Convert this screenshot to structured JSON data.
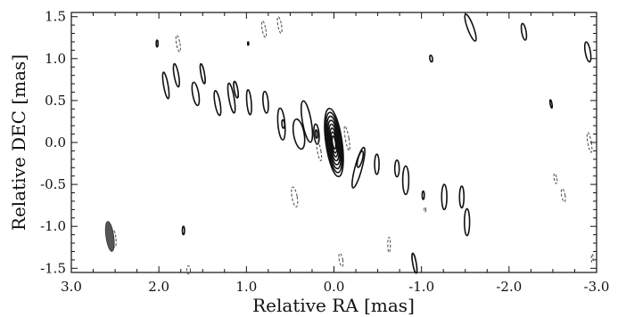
{
  "chart_data": {
    "type": "contour",
    "xlabel": "Relative RA [mas]",
    "ylabel": "Relative DEC [mas]",
    "xlim": [
      3.0,
      -3.0
    ],
    "ylim": [
      -1.55,
      1.55
    ],
    "x_ticks": [
      3.0,
      2.0,
      1.0,
      0.0,
      -1.0,
      -2.0,
      -3.0
    ],
    "x_tick_labels": [
      "3.0",
      "2.0",
      "1.0",
      "0.0",
      "-1.0",
      "-2.0",
      "-3.0"
    ],
    "y_ticks": [
      1.5,
      1.0,
      0.5,
      0.0,
      -0.5,
      -1.0,
      -1.5
    ],
    "y_tick_labels": [
      "1.5",
      "1.0",
      "0.5",
      "0.0",
      "-0.5",
      "-1.0",
      "-1.5"
    ],
    "core": {
      "x": 0.0,
      "y": 0.0,
      "levels": 8
    },
    "components": [
      {
        "x": 1.92,
        "y": 0.68,
        "rx": 0.025,
        "ry": 0.16,
        "tilt": 10
      },
      {
        "x": 1.8,
        "y": 0.8,
        "rx": 0.025,
        "ry": 0.14,
        "tilt": 10
      },
      {
        "x": 1.58,
        "y": 0.58,
        "rx": 0.035,
        "ry": 0.14,
        "tilt": 10
      },
      {
        "x": 1.5,
        "y": 0.82,
        "rx": 0.02,
        "ry": 0.12,
        "tilt": 10
      },
      {
        "x": 1.33,
        "y": 0.47,
        "rx": 0.03,
        "ry": 0.15,
        "tilt": 10
      },
      {
        "x": 1.17,
        "y": 0.53,
        "rx": 0.03,
        "ry": 0.18,
        "tilt": 10
      },
      {
        "x": 1.12,
        "y": 0.63,
        "rx": 0.02,
        "ry": 0.1,
        "tilt": 10
      },
      {
        "x": 0.97,
        "y": 0.48,
        "rx": 0.025,
        "ry": 0.15,
        "tilt": 5
      },
      {
        "x": 0.78,
        "y": 0.48,
        "rx": 0.03,
        "ry": 0.13,
        "tilt": 5
      },
      {
        "x": 0.6,
        "y": 0.22,
        "rx": 0.04,
        "ry": 0.19,
        "tilt": 5
      },
      {
        "x": 0.58,
        "y": 0.22,
        "rx": 0.015,
        "ry": 0.05,
        "tilt": 5
      },
      {
        "x": 0.4,
        "y": 0.1,
        "rx": 0.06,
        "ry": 0.18,
        "tilt": 10
      },
      {
        "x": 0.31,
        "y": 0.25,
        "rx": 0.05,
        "ry": 0.25,
        "tilt": 10
      },
      {
        "x": 0.2,
        "y": 0.1,
        "rx": 0.03,
        "ry": 0.12,
        "tilt": 5
      },
      {
        "x": 0.2,
        "y": 0.1,
        "rx": 0.012,
        "ry": 0.05,
        "tilt": 5
      },
      {
        "x": -0.28,
        "y": -0.3,
        "rx": 0.04,
        "ry": 0.25,
        "tilt": -15
      },
      {
        "x": -0.3,
        "y": -0.2,
        "rx": 0.025,
        "ry": 0.1,
        "tilt": -15
      },
      {
        "x": -0.49,
        "y": -0.26,
        "rx": 0.025,
        "ry": 0.12,
        "tilt": 0
      },
      {
        "x": -0.72,
        "y": -0.31,
        "rx": 0.025,
        "ry": 0.1,
        "tilt": 0
      },
      {
        "x": -0.82,
        "y": -0.45,
        "rx": 0.035,
        "ry": 0.17,
        "tilt": 0
      },
      {
        "x": -1.02,
        "y": -0.63,
        "rx": 0.012,
        "ry": 0.05,
        "tilt": 0
      },
      {
        "x": -1.26,
        "y": -0.65,
        "rx": 0.03,
        "ry": 0.15,
        "tilt": 0
      },
      {
        "x": -1.46,
        "y": -0.65,
        "rx": 0.025,
        "ry": 0.13,
        "tilt": 0
      },
      {
        "x": -1.52,
        "y": -0.95,
        "rx": 0.03,
        "ry": 0.16,
        "tilt": 0
      },
      {
        "x": -1.56,
        "y": 1.37,
        "rx": 0.035,
        "ry": 0.17,
        "tilt": 20
      },
      {
        "x": -2.17,
        "y": 1.32,
        "rx": 0.025,
        "ry": 0.1,
        "tilt": 10
      },
      {
        "x": -2.9,
        "y": 1.08,
        "rx": 0.03,
        "ry": 0.12,
        "tilt": 10
      },
      {
        "x": -1.11,
        "y": 1.0,
        "rx": 0.015,
        "ry": 0.04,
        "tilt": 10
      },
      {
        "x": -2.48,
        "y": 0.46,
        "rx": 0.01,
        "ry": 0.05,
        "tilt": 10
      },
      {
        "x": 2.02,
        "y": 1.18,
        "rx": 0.01,
        "ry": 0.04,
        "tilt": 0
      },
      {
        "x": 1.72,
        "y": -1.05,
        "rx": 0.012,
        "ry": 0.05,
        "tilt": 0
      },
      {
        "x": 0.98,
        "y": 1.18,
        "rx": 0.006,
        "ry": 0.02,
        "tilt": 0
      },
      {
        "x": -0.92,
        "y": -1.44,
        "rx": 0.02,
        "ry": 0.12,
        "tilt": 10
      }
    ],
    "negative_components": [
      {
        "x": 1.78,
        "y": 1.18,
        "rx": 0.02,
        "ry": 0.1,
        "tilt": 10
      },
      {
        "x": 0.8,
        "y": 1.35,
        "rx": 0.02,
        "ry": 0.1,
        "tilt": 10
      },
      {
        "x": 0.62,
        "y": 1.4,
        "rx": 0.02,
        "ry": 0.1,
        "tilt": 10
      },
      {
        "x": 0.45,
        "y": -0.65,
        "rx": 0.03,
        "ry": 0.12,
        "tilt": 10
      },
      {
        "x": 0.17,
        "y": -0.1,
        "rx": 0.02,
        "ry": 0.12,
        "tilt": 10
      },
      {
        "x": -0.15,
        "y": 0.05,
        "rx": 0.02,
        "ry": 0.15,
        "tilt": 10
      },
      {
        "x": -0.08,
        "y": -1.4,
        "rx": 0.02,
        "ry": 0.08,
        "tilt": 10
      },
      {
        "x": -0.63,
        "y": -1.22,
        "rx": 0.015,
        "ry": 0.09,
        "tilt": 0
      },
      {
        "x": -1.04,
        "y": -0.8,
        "rx": 0.01,
        "ry": 0.03,
        "tilt": 0
      },
      {
        "x": -2.53,
        "y": -0.43,
        "rx": 0.015,
        "ry": 0.06,
        "tilt": 10
      },
      {
        "x": -2.62,
        "y": -0.63,
        "rx": 0.02,
        "ry": 0.08,
        "tilt": 10
      },
      {
        "x": -2.92,
        "y": 0.0,
        "rx": 0.02,
        "ry": 0.12,
        "tilt": 10
      },
      {
        "x": 2.51,
        "y": -1.15,
        "rx": 0.02,
        "ry": 0.1,
        "tilt": 5
      },
      {
        "x": 1.66,
        "y": -1.52,
        "rx": 0.02,
        "ry": 0.05,
        "tilt": 5
      },
      {
        "x": -2.95,
        "y": -1.38,
        "rx": 0.01,
        "ry": 0.05,
        "tilt": 0
      }
    ],
    "beam": {
      "x": 2.56,
      "y": -1.12,
      "rx": 0.045,
      "ry": 0.18,
      "tilt": 8
    }
  }
}
